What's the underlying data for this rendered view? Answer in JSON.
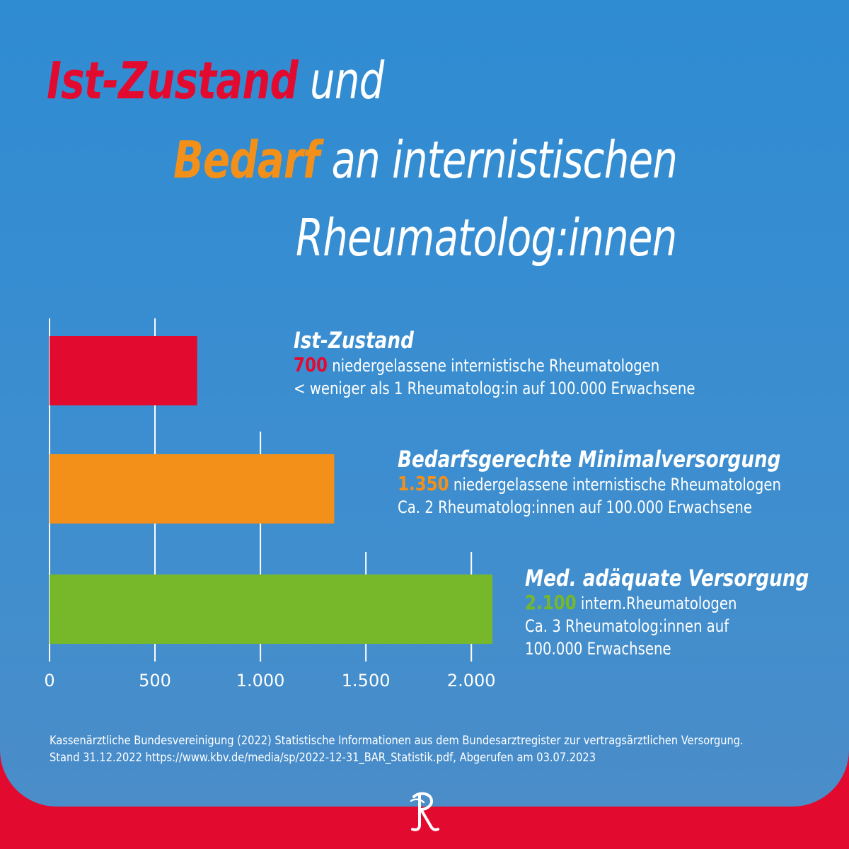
{
  "title": {
    "line1_highlight": "Ist-Zustand",
    "line1_rest": "und",
    "line2_highlight": "Bedarf",
    "line2_rest": "an internistischen",
    "line3": "Rheumatolog:innen"
  },
  "colors": {
    "red": "#e30a2f",
    "orange": "#f39019",
    "green": "#76b82a",
    "background": "#3c8ed0"
  },
  "chart_data": {
    "type": "bar",
    "orientation": "horizontal",
    "categories": [
      "Ist-Zustand",
      "Bedarfsgerechte Minimalversorgung",
      "Med. adäquate Versorgung"
    ],
    "values": [
      700,
      1350,
      2100
    ],
    "xlim": [
      0,
      2100
    ],
    "x_ticks": [
      0,
      500,
      1000,
      1500,
      2000
    ],
    "x_tick_labels": [
      "0",
      "500",
      "1.000",
      "1.500",
      "2.000"
    ],
    "grid": true,
    "bar_colors": [
      "#e30a2f",
      "#f39019",
      "#76b82a"
    ]
  },
  "annotations": [
    {
      "heading": "Ist-Zustand",
      "number": "700",
      "line1_text": "niedergelassene internistische Rheumatologen",
      "line2": "< weniger als 1 Rheumatolog:in auf 100.000 Erwachsene",
      "line3": ""
    },
    {
      "heading": "Bedarfsgerechte Minimalversorgung",
      "number": "1.350",
      "line1_text": "niedergelassene internistische Rheumatologen",
      "line2": "Ca. 2 Rheumatolog:innen auf 100.000 Erwachsene",
      "line3": ""
    },
    {
      "heading": "Med. adäquate Versorgung",
      "number": "2.100",
      "line1_text": "intern.Rheumatologen",
      "line2": "Ca. 3 Rheumatolog:innen auf",
      "line3": "100.000 Erwachsene"
    }
  ],
  "source": {
    "line1": "Kassenärztliche Bundesvereinigung (2022) Statistische Informationen aus dem Bundesarztregister zur vertragsärztlichen Versorgung.",
    "line2": "Stand 31.12.2022 https://www.kbv.de/media/sp/2022-12-31_BAR_Statistik.pdf, Abgerufen am 03.07.2023"
  },
  "logo": {
    "icon": "rheuma-r-logo-icon"
  }
}
